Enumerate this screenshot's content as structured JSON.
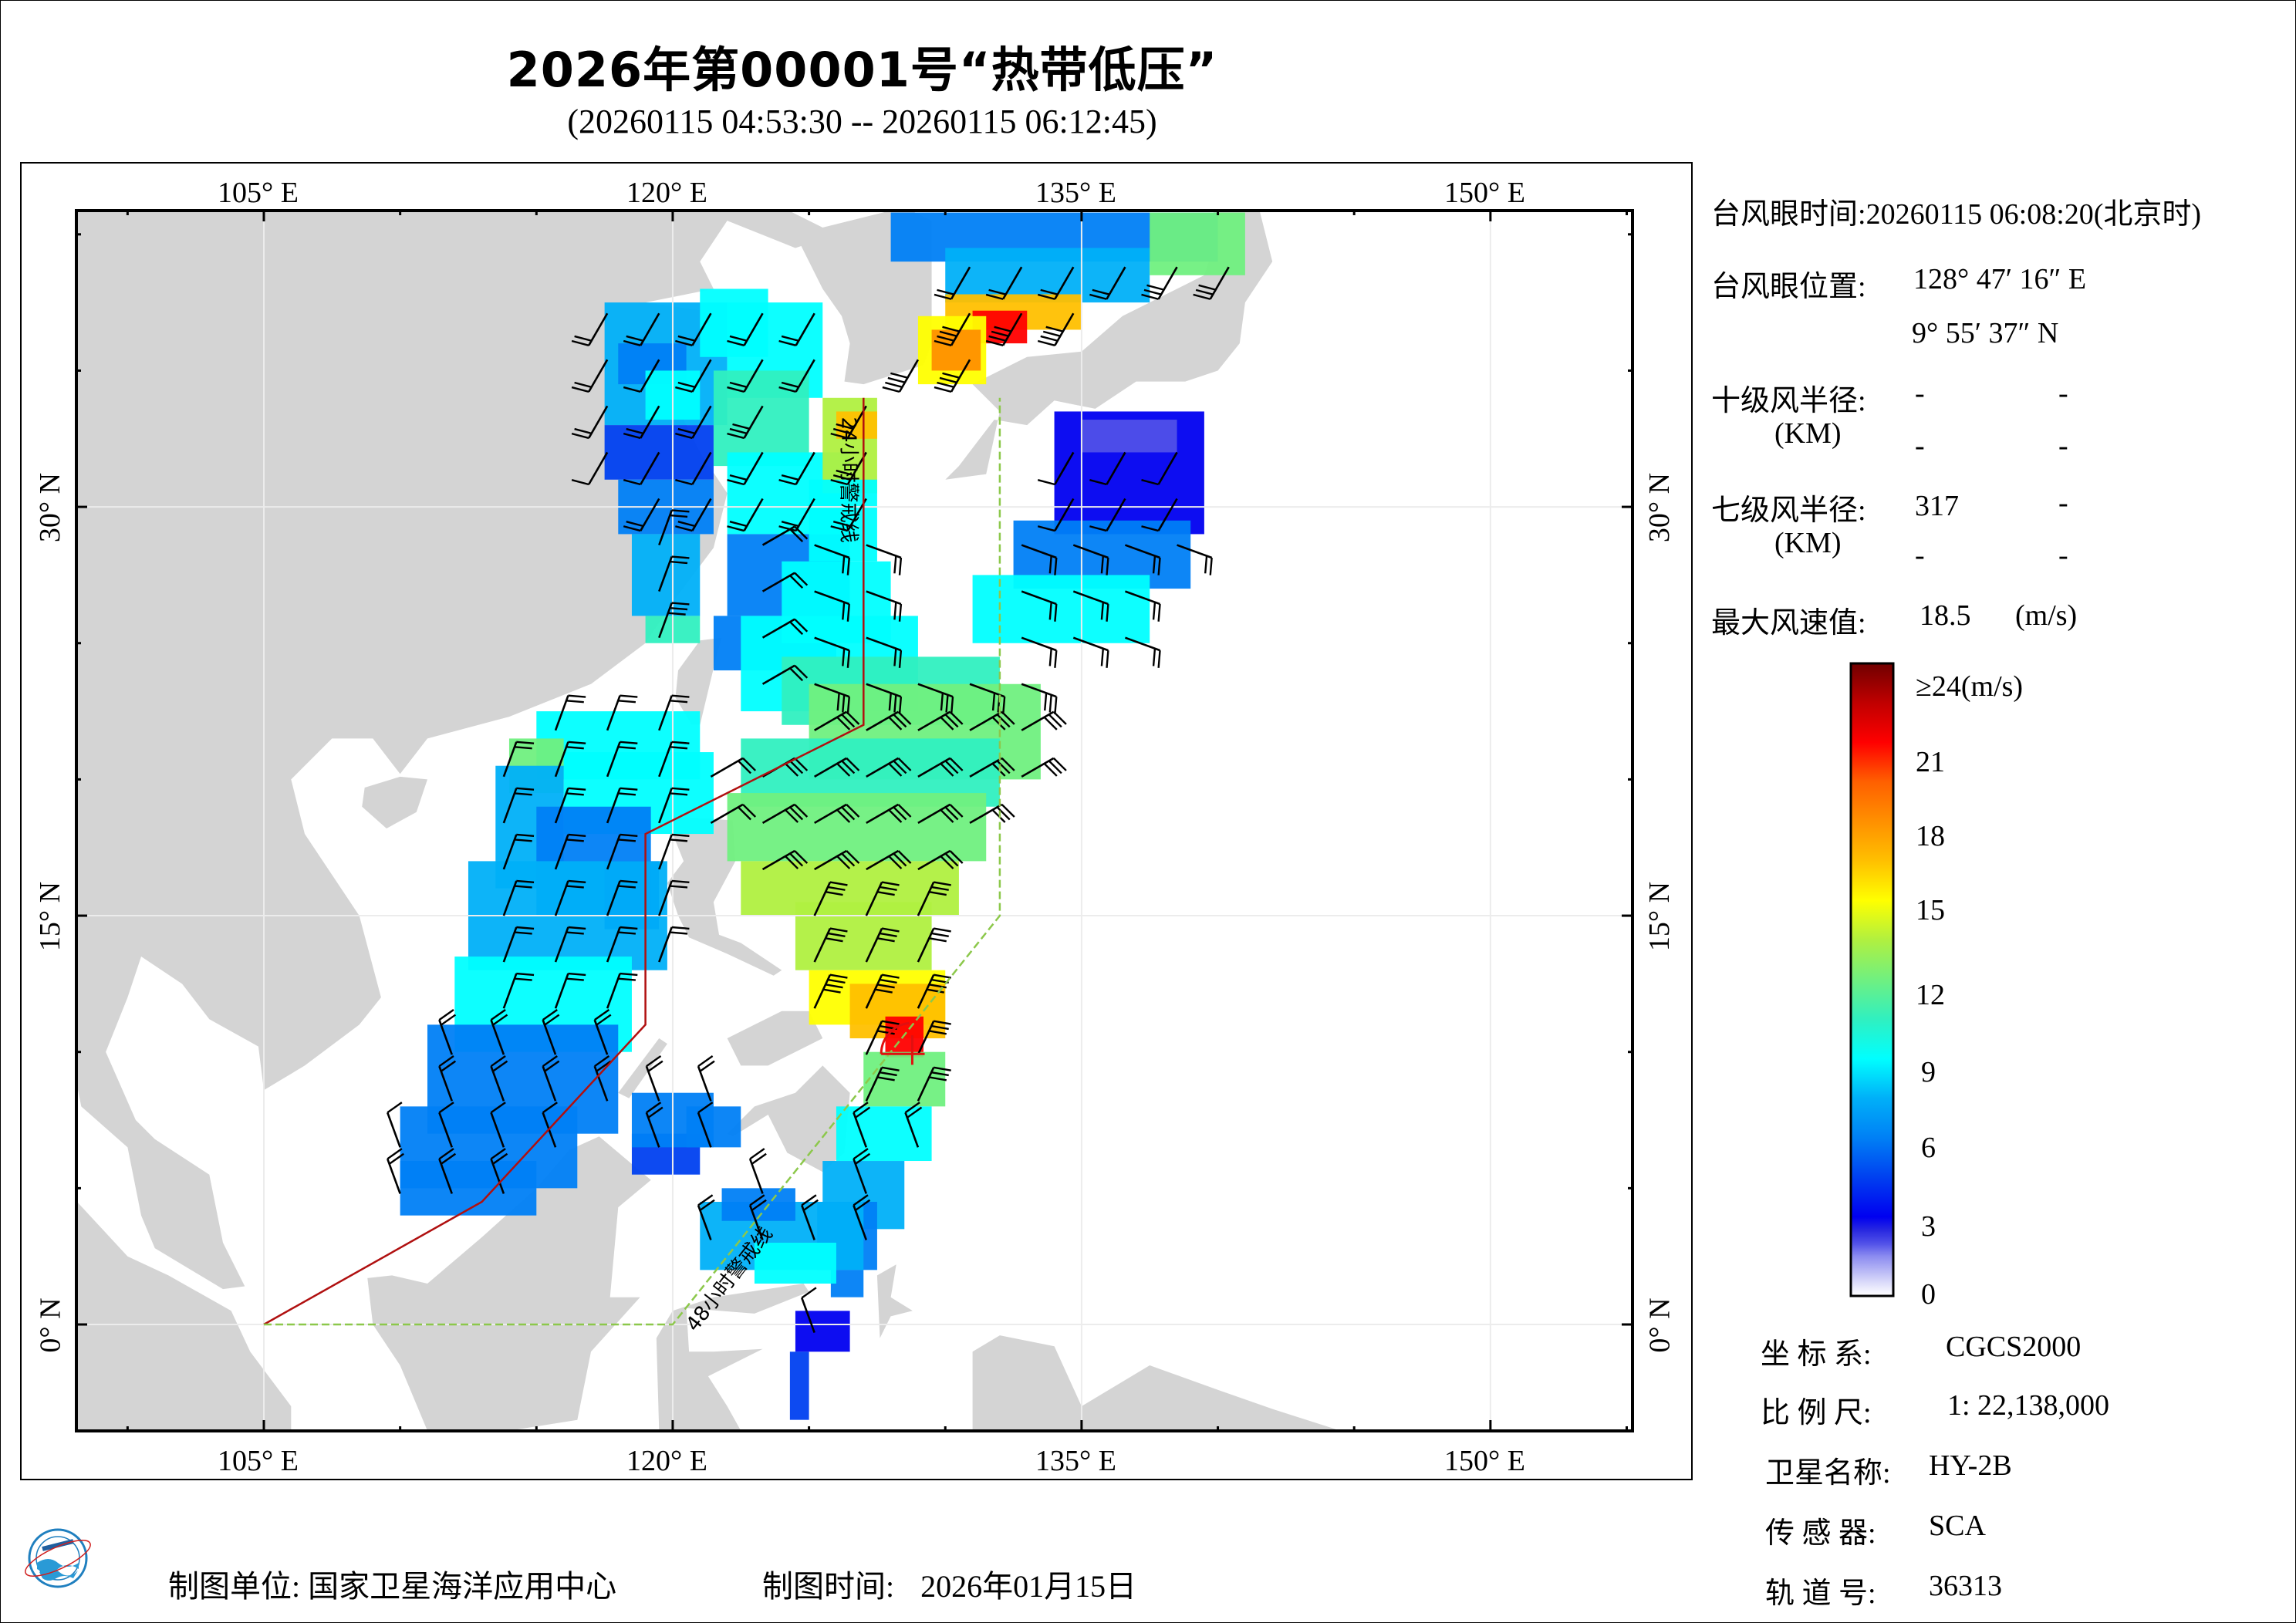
{
  "header": {
    "title": "2026年第00001号“热带低压”",
    "subtitle": "(20260115 04:53:30 -- 20260115 06:12:45)"
  },
  "map": {
    "lon_labels_top": [
      "105° E",
      "120° E",
      "135° E",
      "150° E"
    ],
    "lon_labels_bottom": [
      "105° E",
      "120° E",
      "135° E",
      "150° E"
    ],
    "lat_labels_left": [
      "30° N",
      "15° N",
      "0° N"
    ],
    "lat_labels_right": [
      "30° N",
      "15° N",
      "0° N"
    ],
    "extent": {
      "lon_min": 98.1,
      "lon_max": 155.1,
      "lat_min": -3.9,
      "lat_max": 40.8
    },
    "warning_lines": {
      "line_24h": {
        "label": "24小时警戒线",
        "color": "#b01010",
        "points": [
          [
            105,
            0
          ],
          [
            113,
            4.5
          ],
          [
            119,
            11
          ],
          [
            119,
            18
          ],
          [
            127,
            22
          ],
          [
            127,
            34
          ]
        ]
      },
      "line_48h": {
        "label": "48小时警戒线",
        "color": "#8cc84b",
        "points": [
          [
            105,
            0
          ],
          [
            120,
            0
          ],
          [
            132,
            15
          ],
          [
            132,
            34
          ]
        ]
      }
    },
    "typhoon_eye": {
      "lon": 128.788,
      "lat": 9.927,
      "color": "#e01010",
      "radius_deg": 2.85
    },
    "land_color": "#d4d4d4",
    "ocean_color": "#ffffff",
    "grid_color": "#ececec"
  },
  "info_panel": {
    "eye_time_label": "台风眼时间:",
    "eye_time_value": "20260115 06:08:20(北京时)",
    "eye_pos_label": "台风眼位置:",
    "eye_lon": "128° 47′ 16″ E",
    "eye_lat": "9° 55′ 37″ N",
    "r10_label": "十级风半径:",
    "r10_unit": "(KM)",
    "r10_values": [
      "-",
      "-",
      "-",
      "-"
    ],
    "r7_label": "七级风半径:",
    "r7_unit": "(KM)",
    "r7_values": [
      "317",
      "-",
      "-",
      "-"
    ],
    "max_wind_label": "最大风速值:",
    "max_wind_value": "18.5",
    "max_wind_unit": "(m/s)"
  },
  "colorbar": {
    "labels": [
      "≥24(m/s)",
      "21",
      "18",
      "15",
      "12",
      "9",
      "6",
      "3",
      "0"
    ],
    "stops": [
      {
        "v": 0,
        "c": "#ffffff"
      },
      {
        "v": 0.5,
        "c": "#dcdcfa"
      },
      {
        "v": 1,
        "c": "#b4b4f5"
      },
      {
        "v": 1.5,
        "c": "#8c8cf0"
      },
      {
        "v": 2,
        "c": "#5050e8"
      },
      {
        "v": 2.5,
        "c": "#2828e0"
      },
      {
        "v": 3,
        "c": "#0000f0"
      },
      {
        "v": 4.5,
        "c": "#0040f0"
      },
      {
        "v": 6,
        "c": "#0080f5"
      },
      {
        "v": 7.5,
        "c": "#00b0f8"
      },
      {
        "v": 9,
        "c": "#00ffff"
      },
      {
        "v": 10.5,
        "c": "#30f0c0"
      },
      {
        "v": 12,
        "c": "#70f080"
      },
      {
        "v": 13.5,
        "c": "#b0f040"
      },
      {
        "v": 15,
        "c": "#ffff00"
      },
      {
        "v": 16.5,
        "c": "#ffc000"
      },
      {
        "v": 18,
        "c": "#ff9000"
      },
      {
        "v": 19.5,
        "c": "#ff6000"
      },
      {
        "v": 21,
        "c": "#ff0000"
      },
      {
        "v": 22.5,
        "c": "#c00000"
      },
      {
        "v": 24,
        "c": "#700000"
      }
    ]
  },
  "metadata_panel": {
    "coord_label": "坐 标 系:",
    "coord_value": "CGCS2000",
    "scale_label": "比 例 尺:",
    "scale_value": "1: 22,138,000",
    "satellite_label": "卫星名称:",
    "satellite_value": "HY-2B",
    "sensor_label": "传 感 器:",
    "sensor_value": "SCA",
    "orbit_label": "轨 道 号:",
    "orbit_value": "36313"
  },
  "footer": {
    "logo": "nsoas-logo-icon",
    "producer_label": "制图单位:",
    "producer_value": "国家卫星海洋应用中心",
    "date_label": "制图时间:",
    "date_value": "2026年01月15日"
  }
}
